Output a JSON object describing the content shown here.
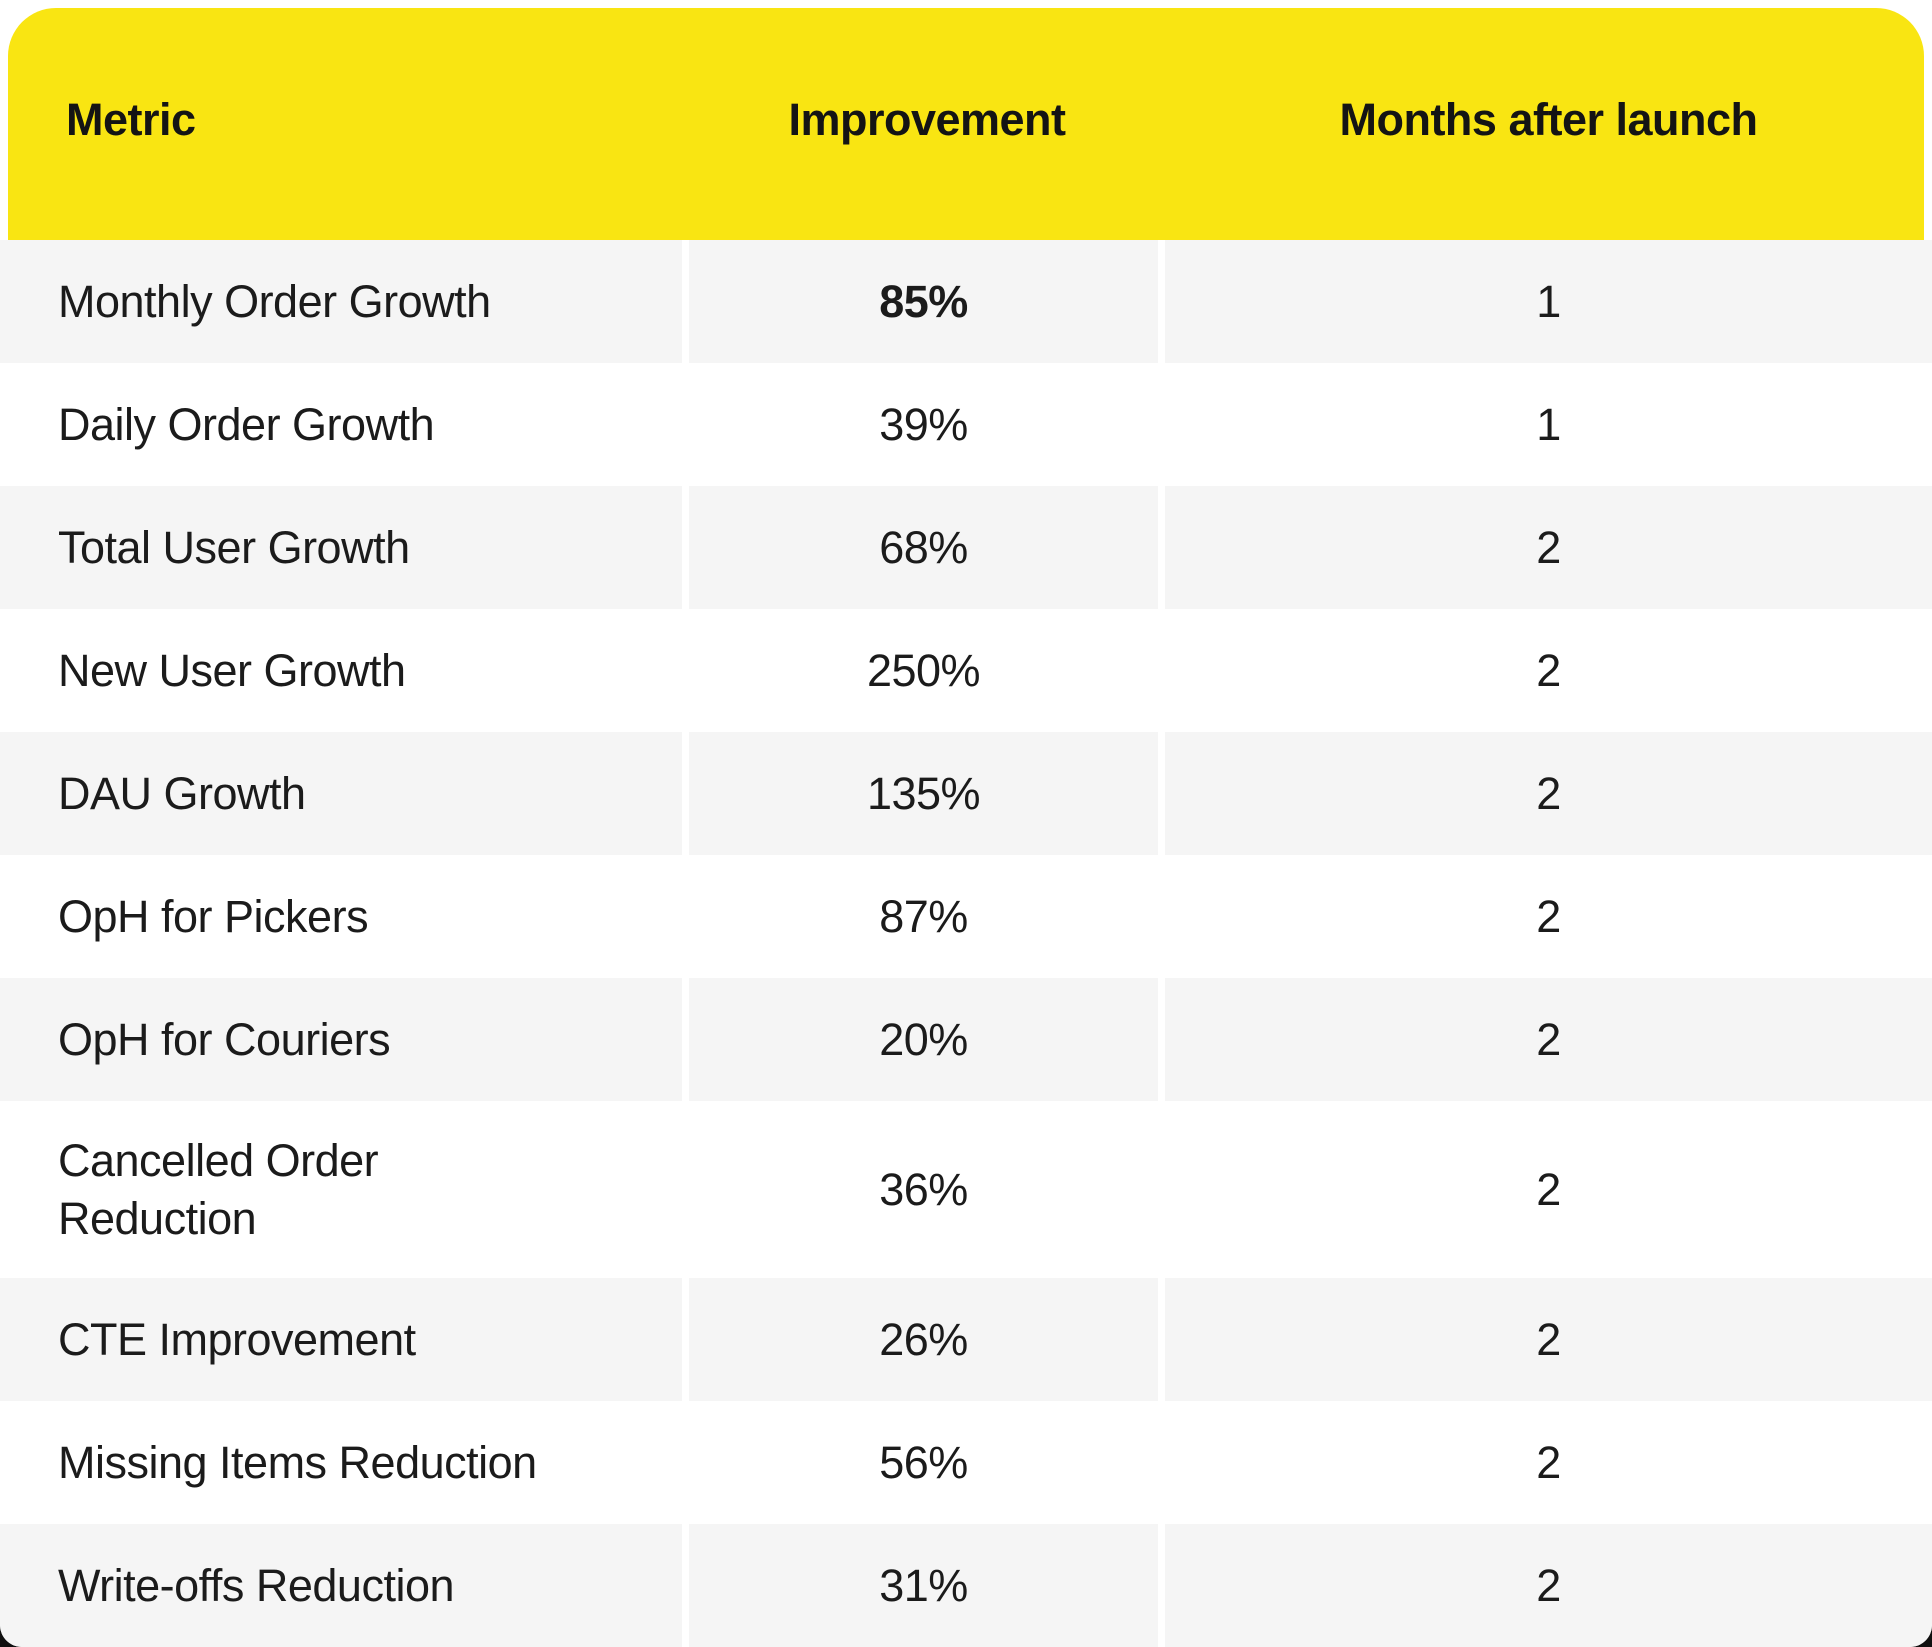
{
  "chart_data": {
    "type": "table",
    "columns": [
      "Metric",
      "Improvement",
      "Months after launch"
    ],
    "rows": [
      {
        "metric": "Monthly Order Growth",
        "improvement": "85%",
        "months_after_launch": "1",
        "improvement_emphasis": true
      },
      {
        "metric": "Daily Order Growth",
        "improvement": "39%",
        "months_after_launch": "1",
        "improvement_emphasis": false
      },
      {
        "metric": "Total User Growth",
        "improvement": "68%",
        "months_after_launch": "2",
        "improvement_emphasis": false
      },
      {
        "metric": "New User Growth",
        "improvement": "250%",
        "months_after_launch": "2",
        "improvement_emphasis": false
      },
      {
        "metric": "DAU Growth",
        "improvement": "135%",
        "months_after_launch": "2",
        "improvement_emphasis": false
      },
      {
        "metric": "OpH for Pickers",
        "improvement": "87%",
        "months_after_launch": "2",
        "improvement_emphasis": false
      },
      {
        "metric": "OpH for Couriers",
        "improvement": "20%",
        "months_after_launch": "2",
        "improvement_emphasis": false
      },
      {
        "metric": "Cancelled Order\nReduction",
        "improvement": "36%",
        "months_after_launch": "2",
        "improvement_emphasis": false
      },
      {
        "metric": "CTE Improvement",
        "improvement": "26%",
        "months_after_launch": "2",
        "improvement_emphasis": false
      },
      {
        "metric": "Missing Items Reduction",
        "improvement": "56%",
        "months_after_launch": "2",
        "improvement_emphasis": false
      },
      {
        "metric": "Write-offs Reduction",
        "improvement": "31%",
        "months_after_launch": "2",
        "improvement_emphasis": false
      }
    ],
    "layout": {
      "zebra_striping": "odd rows shaded",
      "header_position": "top"
    }
  },
  "colors": {
    "header_bg": "#F9E512",
    "row_alt_bg": "#F5F5F5",
    "row_bg": "#FFFFFF",
    "text": "#1B1B1B",
    "header_text": "#141414"
  }
}
